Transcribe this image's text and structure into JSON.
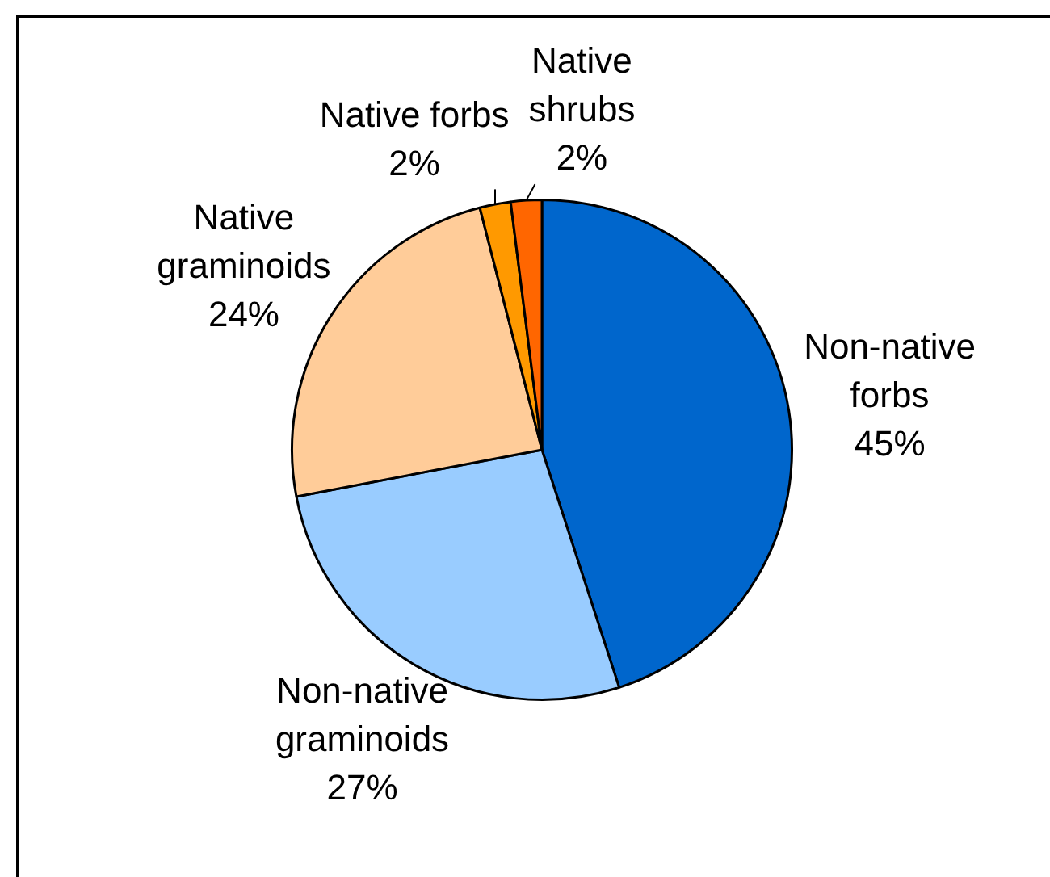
{
  "chart_data": {
    "type": "pie",
    "categories": [
      "Non-native forbs",
      "Non-native graminoids",
      "Native graminoids",
      "Native forbs",
      "Native shrubs"
    ],
    "values": [
      45,
      27,
      24,
      2,
      2
    ],
    "colors": [
      "#0066cc",
      "#99ccff",
      "#ffcc99",
      "#ff9900",
      "#ff6600"
    ],
    "value_labels": [
      "45%",
      "27%",
      "24%",
      "2%",
      "2%"
    ]
  }
}
